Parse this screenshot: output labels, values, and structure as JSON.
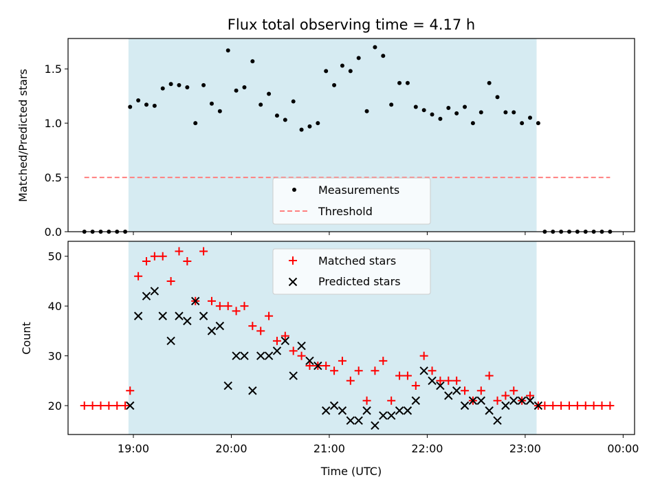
{
  "figure_title": "Flux total observing time = 4.17 h",
  "colors": {
    "shade": "#add8e6",
    "measurements": "#000000",
    "threshold": "#ff7f7f",
    "matched": "#ff0000",
    "predicted": "#000000"
  },
  "chart_data": [
    {
      "type": "scatter",
      "title": "Flux total observing time = 4.17 h",
      "xlabel": "",
      "ylabel": "Matched/Predicted stars",
      "xlim": [
        "18:20",
        "00:07"
      ],
      "ylim": [
        0,
        1.78
      ],
      "yticks": [
        0.0,
        0.5,
        1.0,
        1.5
      ],
      "ytick_labels": [
        "0.0",
        "0.5",
        "1.0",
        "1.5"
      ],
      "xticks": [
        "19:00",
        "20:00",
        "21:00",
        "22:00",
        "23:00",
        "00:00"
      ],
      "shaded_span": [
        "18:57",
        "23:07"
      ],
      "legend_position": "lower center",
      "series": [
        {
          "name": "Measurements",
          "marker": "dot",
          "points": [
            [
              "18:30",
              0.0
            ],
            [
              "18:35",
              0.0
            ],
            [
              "18:40",
              0.0
            ],
            [
              "18:45",
              0.0
            ],
            [
              "18:50",
              0.0
            ],
            [
              "18:55",
              0.0
            ],
            [
              "18:58",
              1.15
            ],
            [
              "19:03",
              1.21
            ],
            [
              "19:08",
              1.17
            ],
            [
              "19:13",
              1.16
            ],
            [
              "19:18",
              1.32
            ],
            [
              "19:23",
              1.36
            ],
            [
              "19:28",
              1.35
            ],
            [
              "19:33",
              1.33
            ],
            [
              "19:38",
              1.0
            ],
            [
              "19:43",
              1.35
            ],
            [
              "19:48",
              1.18
            ],
            [
              "19:53",
              1.11
            ],
            [
              "19:58",
              1.67
            ],
            [
              "20:03",
              1.3
            ],
            [
              "20:08",
              1.33
            ],
            [
              "20:13",
              1.57
            ],
            [
              "20:18",
              1.17
            ],
            [
              "20:23",
              1.27
            ],
            [
              "20:28",
              1.07
            ],
            [
              "20:33",
              1.03
            ],
            [
              "20:38",
              1.2
            ],
            [
              "20:43",
              0.94
            ],
            [
              "20:48",
              0.97
            ],
            [
              "20:53",
              1.0
            ],
            [
              "20:58",
              1.48
            ],
            [
              "21:03",
              1.35
            ],
            [
              "21:08",
              1.53
            ],
            [
              "21:13",
              1.48
            ],
            [
              "21:18",
              1.6
            ],
            [
              "21:23",
              1.11
            ],
            [
              "21:28",
              1.7
            ],
            [
              "21:33",
              1.62
            ],
            [
              "21:38",
              1.17
            ],
            [
              "21:43",
              1.37
            ],
            [
              "21:48",
              1.37
            ],
            [
              "21:53",
              1.15
            ],
            [
              "21:58",
              1.12
            ],
            [
              "22:03",
              1.08
            ],
            [
              "22:08",
              1.04
            ],
            [
              "22:13",
              1.14
            ],
            [
              "22:18",
              1.09
            ],
            [
              "22:23",
              1.15
            ],
            [
              "22:28",
              1.0
            ],
            [
              "22:33",
              1.1
            ],
            [
              "22:38",
              1.37
            ],
            [
              "22:43",
              1.24
            ],
            [
              "22:48",
              1.1
            ],
            [
              "22:53",
              1.1
            ],
            [
              "22:58",
              1.0
            ],
            [
              "23:03",
              1.05
            ],
            [
              "23:08",
              1.0
            ],
            [
              "23:12",
              0.0
            ],
            [
              "23:17",
              0.0
            ],
            [
              "23:22",
              0.0
            ],
            [
              "23:27",
              0.0
            ],
            [
              "23:32",
              0.0
            ],
            [
              "23:37",
              0.0
            ],
            [
              "23:42",
              0.0
            ],
            [
              "23:47",
              0.0
            ],
            [
              "23:52",
              0.0
            ]
          ]
        },
        {
          "name": "Threshold",
          "type": "line",
          "style": "dashed",
          "points": [
            [
              "18:30",
              0.5
            ],
            [
              "23:52",
              0.5
            ]
          ]
        }
      ]
    },
    {
      "type": "scatter",
      "title": "",
      "xlabel": "Time (UTC)",
      "ylabel": "Count",
      "xlim": [
        "18:20",
        "00:07"
      ],
      "ylim": [
        14.2,
        53
      ],
      "yticks": [
        20,
        30,
        40,
        50
      ],
      "ytick_labels": [
        "20",
        "30",
        "40",
        "50"
      ],
      "xticks": [
        "19:00",
        "20:00",
        "21:00",
        "22:00",
        "23:00",
        "00:00"
      ],
      "xtick_labels": [
        "19:00",
        "20:00",
        "21:00",
        "22:00",
        "23:00",
        "00:00"
      ],
      "shaded_span": [
        "18:57",
        "23:07"
      ],
      "legend_position": "upper center",
      "series": [
        {
          "name": "Matched stars",
          "marker": "plus",
          "points": [
            [
              "18:30",
              20
            ],
            [
              "18:35",
              20
            ],
            [
              "18:40",
              20
            ],
            [
              "18:45",
              20
            ],
            [
              "18:50",
              20
            ],
            [
              "18:55",
              20
            ],
            [
              "18:58",
              23
            ],
            [
              "19:03",
              46
            ],
            [
              "19:08",
              49
            ],
            [
              "19:13",
              50
            ],
            [
              "19:18",
              50
            ],
            [
              "19:23",
              45
            ],
            [
              "19:28",
              51
            ],
            [
              "19:33",
              49
            ],
            [
              "19:38",
              41
            ],
            [
              "19:43",
              51
            ],
            [
              "19:48",
              41
            ],
            [
              "19:53",
              40
            ],
            [
              "19:58",
              40
            ],
            [
              "20:03",
              39
            ],
            [
              "20:08",
              40
            ],
            [
              "20:13",
              36
            ],
            [
              "20:18",
              35
            ],
            [
              "20:23",
              38
            ],
            [
              "20:28",
              33
            ],
            [
              "20:33",
              34
            ],
            [
              "20:38",
              31
            ],
            [
              "20:43",
              30
            ],
            [
              "20:48",
              28
            ],
            [
              "20:53",
              28
            ],
            [
              "20:58",
              28
            ],
            [
              "21:03",
              27
            ],
            [
              "21:08",
              29
            ],
            [
              "21:13",
              25
            ],
            [
              "21:18",
              27
            ],
            [
              "21:23",
              21
            ],
            [
              "21:28",
              27
            ],
            [
              "21:33",
              29
            ],
            [
              "21:38",
              21
            ],
            [
              "21:43",
              26
            ],
            [
              "21:48",
              26
            ],
            [
              "21:53",
              24
            ],
            [
              "21:58",
              30
            ],
            [
              "22:03",
              27
            ],
            [
              "22:08",
              25
            ],
            [
              "22:13",
              25
            ],
            [
              "22:18",
              25
            ],
            [
              "22:23",
              23
            ],
            [
              "22:28",
              21
            ],
            [
              "22:33",
              23
            ],
            [
              "22:38",
              26
            ],
            [
              "22:43",
              21
            ],
            [
              "22:48",
              22
            ],
            [
              "22:53",
              23
            ],
            [
              "22:58",
              21
            ],
            [
              "23:03",
              22
            ],
            [
              "23:08",
              20
            ],
            [
              "23:12",
              20
            ],
            [
              "23:17",
              20
            ],
            [
              "23:22",
              20
            ],
            [
              "23:27",
              20
            ],
            [
              "23:32",
              20
            ],
            [
              "23:37",
              20
            ],
            [
              "23:42",
              20
            ],
            [
              "23:47",
              20
            ],
            [
              "23:52",
              20
            ]
          ]
        },
        {
          "name": "Predicted stars",
          "marker": "x",
          "points": [
            [
              "18:58",
              20
            ],
            [
              "19:03",
              38
            ],
            [
              "19:08",
              42
            ],
            [
              "19:13",
              43
            ],
            [
              "19:18",
              38
            ],
            [
              "19:23",
              33
            ],
            [
              "19:28",
              38
            ],
            [
              "19:33",
              37
            ],
            [
              "19:38",
              41
            ],
            [
              "19:43",
              38
            ],
            [
              "19:48",
              35
            ],
            [
              "19:53",
              36
            ],
            [
              "19:58",
              24
            ],
            [
              "20:03",
              30
            ],
            [
              "20:08",
              30
            ],
            [
              "20:13",
              23
            ],
            [
              "20:18",
              30
            ],
            [
              "20:23",
              30
            ],
            [
              "20:28",
              31
            ],
            [
              "20:33",
              33
            ],
            [
              "20:38",
              26
            ],
            [
              "20:43",
              32
            ],
            [
              "20:48",
              29
            ],
            [
              "20:53",
              28
            ],
            [
              "20:58",
              19
            ],
            [
              "21:03",
              20
            ],
            [
              "21:08",
              19
            ],
            [
              "21:13",
              17
            ],
            [
              "21:18",
              17
            ],
            [
              "21:23",
              19
            ],
            [
              "21:28",
              16
            ],
            [
              "21:33",
              18
            ],
            [
              "21:38",
              18
            ],
            [
              "21:43",
              19
            ],
            [
              "21:48",
              19
            ],
            [
              "21:53",
              21
            ],
            [
              "21:58",
              27
            ],
            [
              "22:03",
              25
            ],
            [
              "22:08",
              24
            ],
            [
              "22:13",
              22
            ],
            [
              "22:18",
              23
            ],
            [
              "22:23",
              20
            ],
            [
              "22:28",
              21
            ],
            [
              "22:33",
              21
            ],
            [
              "22:38",
              19
            ],
            [
              "22:43",
              17
            ],
            [
              "22:48",
              20
            ],
            [
              "22:53",
              21
            ],
            [
              "22:58",
              21
            ],
            [
              "23:03",
              21
            ],
            [
              "23:08",
              20
            ]
          ]
        }
      ]
    }
  ]
}
